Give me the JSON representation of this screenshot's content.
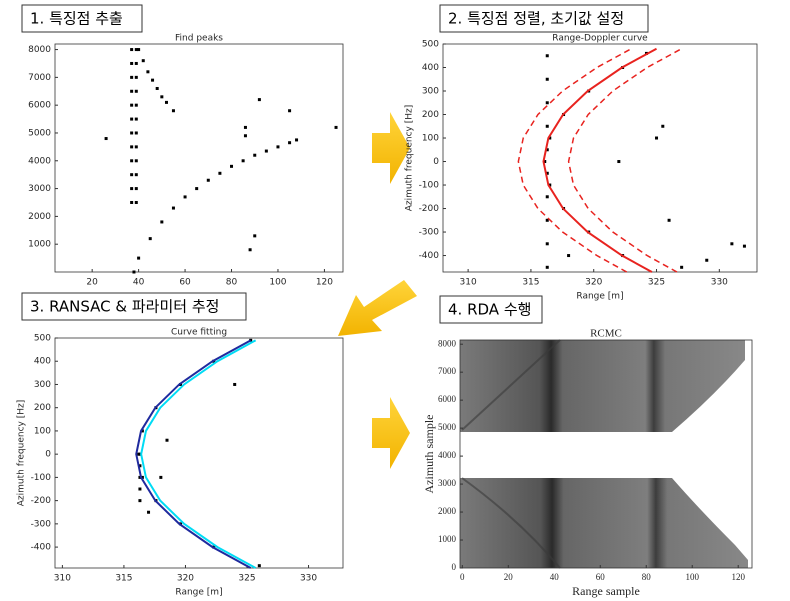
{
  "steps": [
    "1. 특징점 추출",
    "2. 특징점 정렬, 초기값 설정",
    "3. RANSAC & 파라미터 추정",
    "4. RDA 수행"
  ],
  "chart_data": [
    {
      "type": "scatter",
      "title": "Find peaks",
      "xlim": [
        4,
        128
      ],
      "xticks": [
        20,
        40,
        60,
        80,
        100,
        120
      ],
      "ylim": [
        0,
        8200
      ],
      "yticks": [
        1000,
        2000,
        3000,
        4000,
        5000,
        6000,
        7000,
        8000
      ],
      "series": [
        {
          "color": "#000000",
          "x": [
            37,
            37,
            37,
            37,
            37,
            37,
            37,
            37,
            37,
            37,
            37,
            37,
            39,
            39,
            39,
            39,
            39,
            39,
            39,
            39,
            39,
            39,
            39,
            39,
            38,
            40,
            45,
            50,
            55,
            60,
            65,
            70,
            75,
            80,
            85,
            90,
            95,
            100,
            105,
            108,
            40,
            42,
            44,
            46,
            48,
            50,
            52,
            55,
            86,
            86,
            88,
            90,
            125,
            26,
            105,
            92
          ],
          "values": [
            2500,
            3000,
            3500,
            4000,
            4500,
            5000,
            5500,
            6000,
            6500,
            7000,
            7500,
            8000,
            2500,
            3000,
            3500,
            4000,
            4500,
            5000,
            5500,
            6000,
            6500,
            7000,
            7500,
            8000,
            0,
            500,
            1200,
            1800,
            2300,
            2700,
            3000,
            3300,
            3550,
            3800,
            4000,
            4200,
            4350,
            4500,
            4650,
            4750,
            8000,
            7600,
            7200,
            6900,
            6600,
            6300,
            6100,
            5800,
            5200,
            4900,
            800,
            1300,
            5200,
            4800,
            5800,
            6200
          ]
        }
      ]
    },
    {
      "type": "scatter",
      "title": "Range-Doppler curve",
      "xlabel": "Range [m]",
      "ylabel": "Azimuth frequency [Hz]",
      "xlim": [
        308,
        333
      ],
      "xticks": [
        310,
        315,
        320,
        325,
        330
      ],
      "ylim": [
        -470,
        500
      ],
      "yticks": [
        -400,
        -300,
        -200,
        -100,
        0,
        100,
        200,
        300,
        400,
        500
      ],
      "series": [
        {
          "color": "#000000",
          "mode": "points",
          "x": [
            316.3,
            316.3,
            316.3,
            316.3,
            316.3,
            316.3,
            316.3,
            316.3,
            316.3,
            316.3,
            322.3,
            319.6,
            317.6,
            316.5,
            316.1,
            316.5,
            317.6,
            319.6,
            322.3,
            324.2,
            325,
            325.5,
            326,
            322,
            331,
            332,
            327,
            329,
            318
          ],
          "values": [
            -450,
            -350,
            -250,
            -150,
            -50,
            50,
            150,
            250,
            350,
            450,
            -400,
            -300,
            -200,
            -100,
            0,
            100,
            200,
            300,
            400,
            460,
            100,
            150,
            -250,
            0,
            -350,
            -360,
            -450,
            -420,
            -400
          ]
        },
        {
          "color": "#e8231f",
          "mode": "line",
          "x": [
            324.63,
            322.25,
            319.52,
            317.56,
            316.39,
            316,
            316.39,
            317.56,
            319.52,
            322.25,
            325
          ],
          "values": [
            -470,
            -400,
            -300,
            -200,
            -100,
            0,
            100,
            200,
            300,
            400,
            480
          ]
        },
        {
          "color": "#e8231f",
          "mode": "dashed",
          "x": [
            322.63,
            320.25,
            317.52,
            315.56,
            314.39,
            314,
            314.39,
            315.56,
            317.52,
            320.25,
            323
          ],
          "values": [
            -470,
            -400,
            -300,
            -200,
            -100,
            0,
            100,
            200,
            300,
            400,
            480
          ]
        },
        {
          "color": "#e8231f",
          "mode": "dashed",
          "x": [
            326.63,
            324.25,
            321.52,
            319.56,
            318.39,
            318,
            318.39,
            319.56,
            321.52,
            324.25,
            327
          ],
          "values": [
            -470,
            -400,
            -300,
            -200,
            -100,
            0,
            100,
            200,
            300,
            400,
            480
          ]
        }
      ]
    },
    {
      "type": "scatter",
      "title": "Curve fitting",
      "xlabel": "Range [m]",
      "ylabel": "Azimuth frequency [Hz]",
      "xlim": [
        309.4,
        332.8
      ],
      "xticks": [
        310,
        315,
        320,
        325,
        330
      ],
      "ylim": [
        -490,
        500
      ],
      "yticks": [
        -400,
        -300,
        -200,
        -100,
        0,
        100,
        200,
        300,
        400,
        500
      ],
      "series": [
        {
          "color": "#000000",
          "mode": "points",
          "x": [
            316.3,
            316.3,
            316.3,
            316.3,
            316.3,
            322.3,
            319.6,
            317.6,
            316.5,
            316.2,
            316.5,
            317.6,
            319.6,
            322.3,
            325.3,
            326,
            318,
            318.5,
            324,
            317
          ],
          "values": [
            -200,
            -150,
            -100,
            -50,
            0,
            -400,
            -300,
            -200,
            -100,
            0,
            100,
            200,
            300,
            400,
            490,
            -480,
            -100,
            60,
            300,
            -250
          ]
        },
        {
          "color": "#1f2a9e",
          "mode": "line",
          "x": [
            325.3,
            322.2,
            319.49,
            317.55,
            316.39,
            316,
            316.39,
            317.55,
            319.49,
            322.2,
            325.3
          ],
          "values": [
            -490,
            -400,
            -300,
            -200,
            -100,
            0,
            100,
            200,
            300,
            400,
            490
          ]
        },
        {
          "color": "#00dcf5",
          "mode": "line",
          "x": [
            325.7,
            322.6,
            319.89,
            317.95,
            316.79,
            316.4,
            316.79,
            317.95,
            319.89,
            322.6,
            325.7
          ],
          "values": [
            -490,
            -400,
            -300,
            -200,
            -100,
            0,
            100,
            200,
            300,
            400,
            490
          ]
        }
      ]
    },
    {
      "type": "image",
      "title": "RCMC",
      "xlabel": "Range sample",
      "ylabel": "Azimuth sample",
      "xlim": [
        -1,
        126
      ],
      "xticks": [
        0,
        20,
        40,
        60,
        80,
        100,
        120
      ],
      "ylim": [
        0,
        8150
      ],
      "yticks": [
        0,
        1000,
        2000,
        3000,
        4000,
        5000,
        6000,
        7000,
        8000
      ]
    }
  ]
}
